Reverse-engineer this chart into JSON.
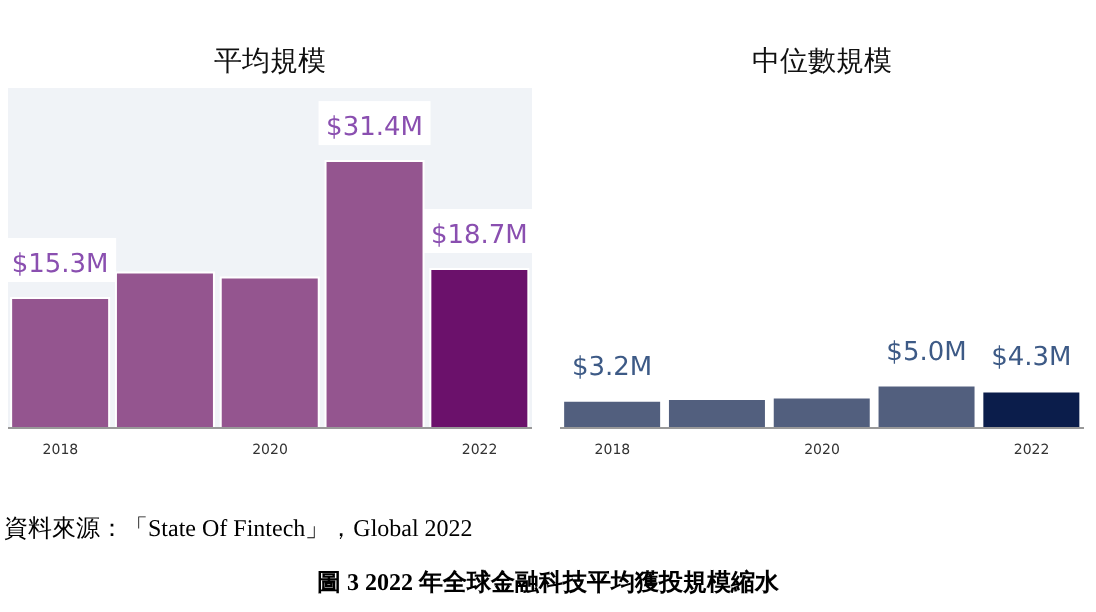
{
  "chart_data": [
    {
      "type": "bar",
      "title": "平均規模",
      "categories": [
        "2018",
        null,
        "2020",
        null,
        "2022"
      ],
      "values": [
        15.3,
        18.3,
        17.7,
        31.4,
        18.7
      ],
      "colors": [
        "#94558f",
        "#94558f",
        "#94558f",
        "#94558f",
        "#6b116b"
      ],
      "value_labels": [
        "$15.3M",
        null,
        null,
        "$31.4M",
        "$18.7M"
      ],
      "ylim": [
        0,
        40
      ],
      "tick_labels": "x",
      "grid": false,
      "annotations": [
        "資料來源：「State Of Fintech」，Global 2022",
        "圖 3 2022 年全球金融科技平均獲投規模縮水"
      ]
    },
    {
      "type": "bar",
      "title": "中位數規模",
      "categories": [
        "2018",
        null,
        "2020",
        null,
        "2022"
      ],
      "values": [
        3.2,
        3.4,
        3.6,
        5.0,
        4.3
      ],
      "colors": [
        "#525f7e",
        "#525f7e",
        "#525f7e",
        "#525f7e",
        "#0b1d4b"
      ],
      "value_labels": [
        "$3.2M",
        null,
        null,
        "$5.0M",
        "$4.3M"
      ],
      "tick_labels": "x",
      "grid": false
    }
  ]
}
